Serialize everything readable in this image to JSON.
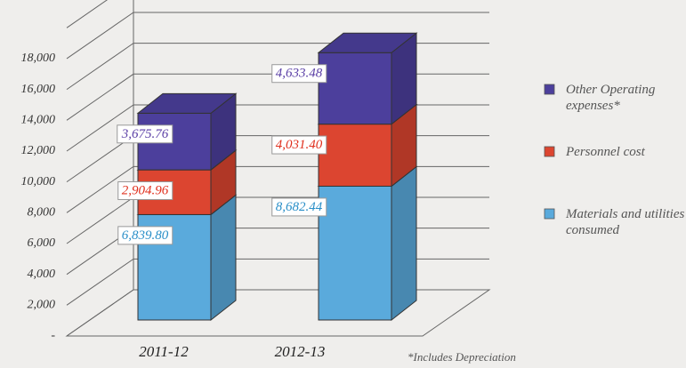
{
  "chart_data": {
    "type": "bar3d_stacked",
    "categories": [
      "2011-12",
      "2012-13"
    ],
    "series": [
      {
        "name": "Materials and utilities consumed",
        "color": "#5aaadc",
        "label_color": "#2a8fc8",
        "values": [
          6839.8,
          8682.44
        ],
        "value_labels": [
          "6,839.80",
          "8,682.44"
        ]
      },
      {
        "name": "Personnel cost",
        "color": "#dc4530",
        "label_color": "#e0301e",
        "values": [
          2904.96,
          4031.4
        ],
        "value_labels": [
          "2,904.96",
          "4,031.40"
        ]
      },
      {
        "name": "Other Operating expenses*",
        "color": "#4c3f9c",
        "label_color": "#5b3fa6",
        "values": [
          3675.76,
          4633.48
        ],
        "value_labels": [
          "3,675.76",
          "4,633.48"
        ]
      }
    ],
    "ylim": [
      0,
      20000
    ],
    "yticks": [
      {
        "value": 0,
        "label": "-"
      },
      {
        "value": 2000,
        "label": "2,000"
      },
      {
        "value": 4000,
        "label": "4,000"
      },
      {
        "value": 6000,
        "label": "6,000"
      },
      {
        "value": 8000,
        "label": "8,000"
      },
      {
        "value": 10000,
        "label": "10,000"
      },
      {
        "value": 12000,
        "label": "12,000"
      },
      {
        "value": 14000,
        "label": "14,000"
      },
      {
        "value": 16000,
        "label": "16,000"
      },
      {
        "value": 18000,
        "label": "18,000"
      }
    ],
    "grid": true,
    "note": "*Includes Depreciation"
  }
}
